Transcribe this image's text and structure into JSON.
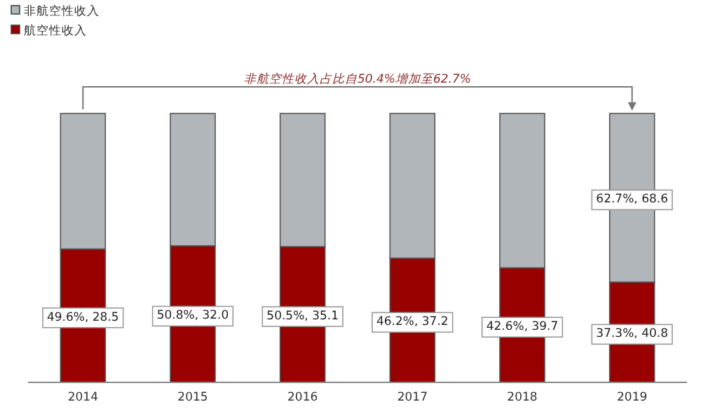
{
  "chart_data": {
    "type": "bar",
    "stacked": true,
    "legend": "top left",
    "categories": [
      "2014",
      "2015",
      "2016",
      "2017",
      "2018",
      "2019"
    ],
    "series": [
      {
        "name": "航空性收入",
        "color": "#990000",
        "values": [
          49.6,
          50.8,
          50.5,
          46.2,
          42.6,
          37.3
        ],
        "value_labels": [
          "49.6%, 28.5",
          "50.8%, 32.0",
          "50.5%, 35.1",
          "46.2%, 37.2",
          "42.6%, 39.7",
          "37.3%, 40.8"
        ]
      },
      {
        "name": "非航空性收入",
        "color": "#b1b6ba",
        "values": [
          50.4,
          49.2,
          49.5,
          53.8,
          57.4,
          62.7
        ],
        "value_labels": [
          null,
          null,
          null,
          null,
          null,
          "62.7%, 68.6"
        ]
      }
    ],
    "annotations": [
      "非航空性收入占比自50.4%增加至62.7%"
    ]
  }
}
